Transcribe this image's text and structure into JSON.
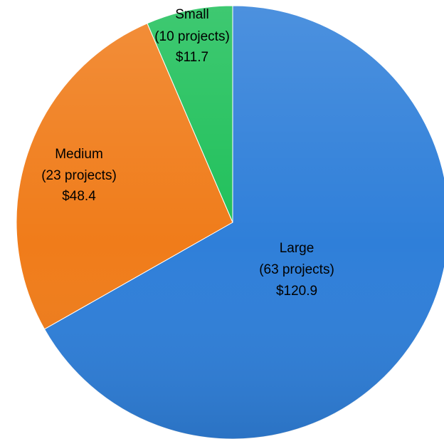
{
  "chart_data": {
    "type": "pie",
    "title": "",
    "start_angle_deg": 0,
    "direction": "clockwise",
    "legend": "none",
    "slices": [
      {
        "category": "Large",
        "projects_label": "(63 projects)",
        "value_label": "$120.9",
        "value": 120.9,
        "projects": 63,
        "color": "#2f7fd9"
      },
      {
        "category": "Medium",
        "projects_label": "(23 projects)",
        "value_label": "$48.4",
        "value": 48.4,
        "projects": 23,
        "color": "#f07c1a"
      },
      {
        "category": "Small",
        "projects_label": "(10 projects)",
        "value_label": "$11.7",
        "value": 11.7,
        "projects": 10,
        "color": "#1fc05a"
      }
    ]
  }
}
